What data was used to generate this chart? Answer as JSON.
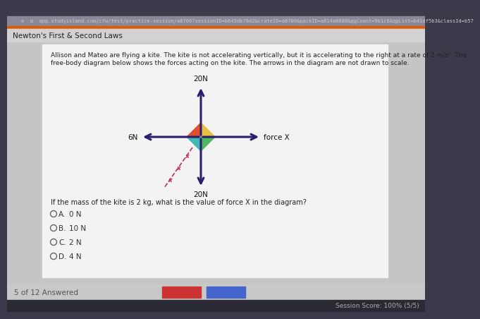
{
  "bg_outer": "#3a3a4a",
  "bg_page": "#c8c8c8",
  "bg_content": "#e8e8e8",
  "bg_white": "#f2f1f1",
  "title_bar_color": "#d5d5d5",
  "title": "Newton's First & Second Laws",
  "title_fontsize": 7.5,
  "url_bar_color": "#888888",
  "orange_bar_color": "#e05a00",
  "problem_text_line1": "Allison and Mateo are flying a kite. The kite is not accelerating vertically, but it is accelerating to the right at a rate of 2 m/s². The",
  "problem_text_line2": "free-body diagram below shows the forces acting on the kite. The arrows in the diagram are not drawn to scale.",
  "question_text": "If the mass of the kite is 2 kg, what is the value of force X in the diagram?",
  "choices": [
    [
      "A.",
      "0 N"
    ],
    [
      "B.",
      "10 N"
    ],
    [
      "C.",
      "2 N"
    ],
    [
      "D.",
      "4 N"
    ]
  ],
  "arrow_color": "#2a1e6e",
  "arrow_up_label": "20N",
  "arrow_down_label": "20N",
  "arrow_left_label": "6N",
  "arrow_right_label": "force X",
  "kite_top_color": "#e8c040",
  "kite_right_color": "#50b860",
  "kite_left_color": "#e05030",
  "kite_bottom_color": "#40b8b8",
  "diag_color": "#c03060",
  "footer_text": "5 of 12 Answered",
  "session_score": "Session Score: 100% (5/5)",
  "nav_red": "#cc3333",
  "nav_blue": "#4466cc",
  "footer_bg": "#c8c8c8",
  "bottom_bg": "#2a2a35"
}
